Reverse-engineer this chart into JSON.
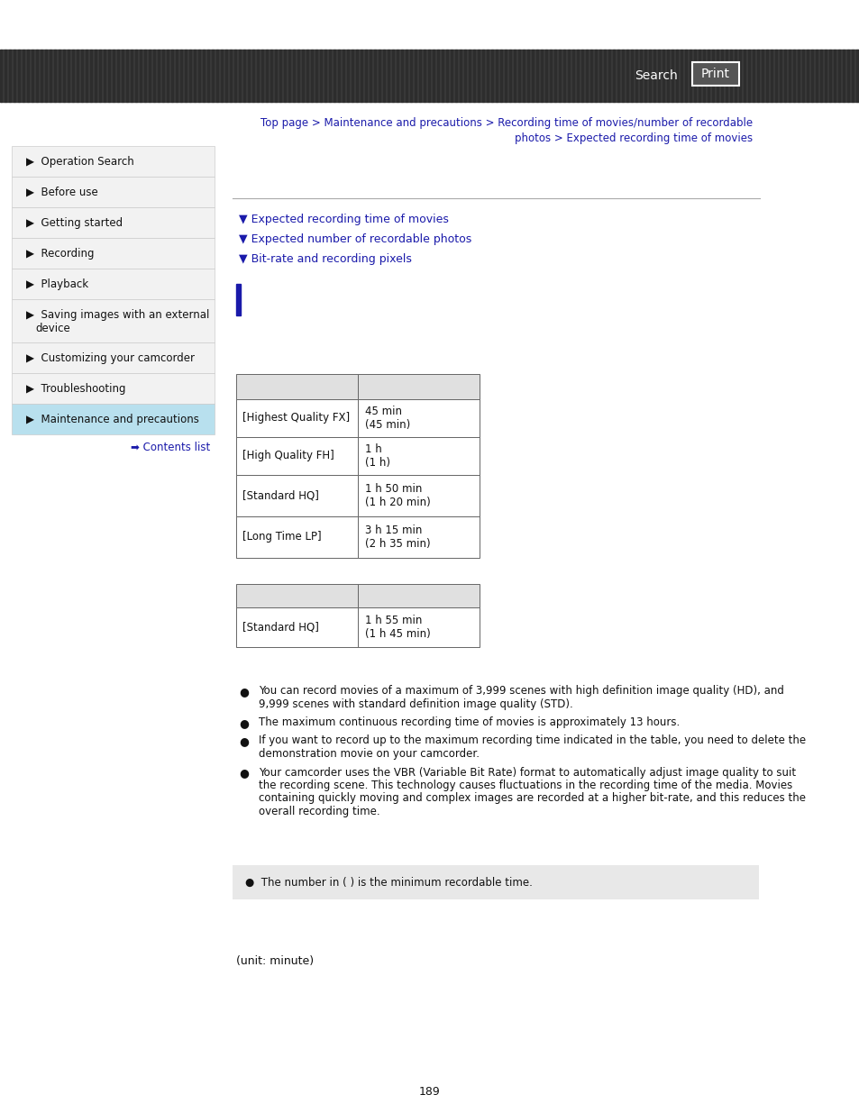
{
  "header_bg": "#3a3a3a",
  "header_text_color": "#ffffff",
  "search_text": "Search",
  "print_text": "Print",
  "breadcrumb_line1": "Top page > Maintenance and precautions > Recording time of movies/number of recordable",
  "breadcrumb_line2": "photos > Expected recording time of movies",
  "breadcrumb_color": "#1a1aaa",
  "sidebar_items": [
    "Operation Search",
    "Before use",
    "Getting started",
    "Recording",
    "Playback",
    "Saving images with an external\ndevice",
    "Customizing your camcorder",
    "Troubleshooting",
    "Maintenance and precautions"
  ],
  "sidebar_active": "Maintenance and precautions",
  "sidebar_active_bg": "#b8e0ee",
  "sidebar_bg": "#f2f2f2",
  "sidebar_border": "#cccccc",
  "contents_list_text": "➡ Contents list",
  "contents_list_color": "#1a1aaa",
  "nav_links": [
    "▼ Expected recording time of movies",
    "▼ Expected number of recordable photos",
    "▼ Bit-rate and recording pixels"
  ],
  "nav_links_color": "#1a1aaa",
  "blue_bar_color": "#1a1aaa",
  "table1_header_bg": "#e0e0e0",
  "table1_rows": [
    [
      "[Highest Quality FX]",
      "45 min\n(45 min)"
    ],
    [
      "[High Quality FH]",
      "1 h\n(1 h)"
    ],
    [
      "[Standard HQ]",
      "1 h 50 min\n(1 h 20 min)"
    ],
    [
      "[Long Time LP]",
      "3 h 15 min\n(2 h 35 min)"
    ]
  ],
  "table2_header_bg": "#e0e0e0",
  "table2_rows": [
    [
      "[Standard HQ]",
      "1 h 55 min\n(1 h 45 min)"
    ]
  ],
  "bullet_points": [
    "You can record movies of a maximum of 3,999 scenes with high definition image quality (HD), and 9,999 scenes with standard definition image quality (STD).",
    "The maximum continuous recording time of movies is approximately 13 hours.",
    "If you want to record up to the maximum recording time indicated in the table, you need to delete the demonstration movie on your camcorder.",
    "Your camcorder uses the VBR (Variable Bit Rate) format to automatically adjust image quality to suit the recording scene. This technology causes fluctuations in the recording time of the media. Movies containing quickly moving and complex images are recorded at a higher bit-rate, and this reduces the overall recording time."
  ],
  "note_bg": "#e8e8e8",
  "note_text": "●  The number in ( ) is the minimum recordable time.",
  "unit_text": "(unit: minute)",
  "page_number": "189",
  "divider_color": "#aaaaaa",
  "text_color": "#111111"
}
